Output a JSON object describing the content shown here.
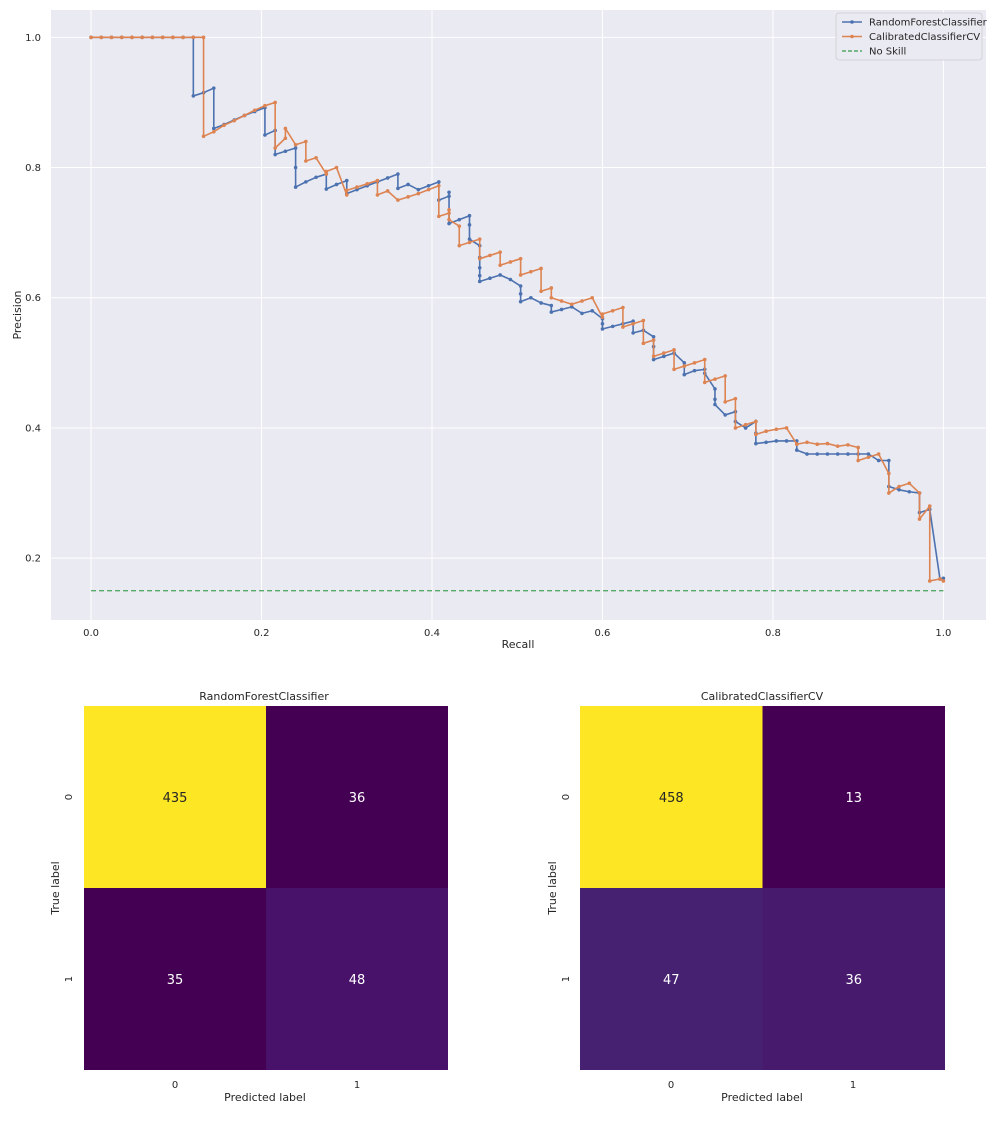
{
  "chart_data": [
    {
      "type": "line",
      "xlabel": "Recall",
      "ylabel": "Precision",
      "xlim": [
        -0.047,
        1.05
      ],
      "ylim": [
        0.105,
        1.042
      ],
      "xticks": [
        0.0,
        0.2,
        0.4,
        0.6,
        0.8,
        1.0
      ],
      "xtick_labels": [
        "0.0",
        "0.2",
        "0.4",
        "0.6",
        "0.8",
        "1.0"
      ],
      "yticks": [
        0.2,
        0.4,
        0.6,
        0.8,
        1.0
      ],
      "ytick_labels": [
        "0.2",
        "0.4",
        "0.6",
        "0.8",
        "1.0"
      ],
      "grid": true,
      "legend_position": "top-right",
      "series": [
        {
          "name": "RandomForestClassifier",
          "color": "#4c72b0",
          "marker": "dot",
          "x": [
            0.0,
            0.012,
            0.024,
            0.036,
            0.048,
            0.06,
            0.072,
            0.084,
            0.096,
            0.108,
            0.12,
            0.12,
            0.132,
            0.144,
            0.144,
            0.156,
            0.168,
            0.18,
            0.192,
            0.204,
            0.204,
            0.216,
            0.216,
            0.228,
            0.24,
            0.24,
            0.24,
            0.252,
            0.264,
            0.276,
            0.276,
            0.288,
            0.3,
            0.3,
            0.312,
            0.324,
            0.336,
            0.348,
            0.36,
            0.36,
            0.372,
            0.384,
            0.396,
            0.408,
            0.408,
            0.42,
            0.42,
            0.42,
            0.432,
            0.444,
            0.444,
            0.444,
            0.456,
            0.456,
            0.456,
            0.456,
            0.456,
            0.468,
            0.48,
            0.492,
            0.504,
            0.504,
            0.504,
            0.516,
            0.528,
            0.54,
            0.54,
            0.552,
            0.564,
            0.576,
            0.588,
            0.6,
            0.6,
            0.6,
            0.612,
            0.624,
            0.636,
            0.636,
            0.648,
            0.66,
            0.66,
            0.66,
            0.672,
            0.684,
            0.696,
            0.696,
            0.708,
            0.72,
            0.72,
            0.732,
            0.732,
            0.732,
            0.744,
            0.756,
            0.756,
            0.768,
            0.78,
            0.78,
            0.78,
            0.792,
            0.804,
            0.816,
            0.828,
            0.828,
            0.84,
            0.852,
            0.864,
            0.876,
            0.888,
            0.9,
            0.912,
            0.924,
            0.936,
            0.936,
            0.948,
            0.96,
            0.972,
            0.972,
            0.984,
            0.996,
            1.0
          ],
          "y": [
            1.0,
            1.0,
            1.0,
            1.0,
            1.0,
            1.0,
            1.0,
            1.0,
            1.0,
            1.0,
            1.0,
            0.91,
            0.915,
            0.922,
            0.86,
            0.866,
            0.873,
            0.88,
            0.886,
            0.892,
            0.85,
            0.857,
            0.82,
            0.825,
            0.83,
            0.8,
            0.77,
            0.778,
            0.785,
            0.79,
            0.767,
            0.774,
            0.78,
            0.76,
            0.766,
            0.772,
            0.778,
            0.784,
            0.79,
            0.768,
            0.774,
            0.766,
            0.772,
            0.778,
            0.75,
            0.756,
            0.762,
            0.714,
            0.72,
            0.726,
            0.712,
            0.69,
            0.68,
            0.662,
            0.646,
            0.634,
            0.625,
            0.63,
            0.635,
            0.628,
            0.618,
            0.606,
            0.594,
            0.6,
            0.592,
            0.588,
            0.578,
            0.582,
            0.586,
            0.576,
            0.58,
            0.568,
            0.56,
            0.552,
            0.556,
            0.56,
            0.564,
            0.546,
            0.55,
            0.54,
            0.525,
            0.505,
            0.51,
            0.515,
            0.5,
            0.482,
            0.488,
            0.49,
            0.484,
            0.46,
            0.444,
            0.436,
            0.42,
            0.425,
            0.41,
            0.4,
            0.41,
            0.392,
            0.376,
            0.378,
            0.38,
            0.38,
            0.38,
            0.366,
            0.36,
            0.36,
            0.36,
            0.36,
            0.36,
            0.36,
            0.36,
            0.35,
            0.35,
            0.31,
            0.305,
            0.302,
            0.3,
            0.27,
            0.275,
            0.168,
            0.169
          ]
        },
        {
          "name": "CalibratedClassifierCV",
          "color": "#dd8452",
          "marker": "dot",
          "x": [
            0.0,
            0.012,
            0.024,
            0.036,
            0.048,
            0.06,
            0.072,
            0.084,
            0.096,
            0.108,
            0.12,
            0.132,
            0.132,
            0.144,
            0.156,
            0.168,
            0.18,
            0.192,
            0.204,
            0.216,
            0.216,
            0.228,
            0.228,
            0.24,
            0.252,
            0.252,
            0.264,
            0.276,
            0.276,
            0.288,
            0.3,
            0.3,
            0.312,
            0.324,
            0.336,
            0.336,
            0.348,
            0.36,
            0.372,
            0.384,
            0.396,
            0.408,
            0.408,
            0.42,
            0.42,
            0.42,
            0.432,
            0.432,
            0.444,
            0.456,
            0.456,
            0.468,
            0.48,
            0.48,
            0.492,
            0.504,
            0.504,
            0.516,
            0.528,
            0.528,
            0.54,
            0.54,
            0.552,
            0.564,
            0.576,
            0.588,
            0.6,
            0.6,
            0.612,
            0.624,
            0.624,
            0.636,
            0.648,
            0.648,
            0.66,
            0.66,
            0.672,
            0.684,
            0.684,
            0.696,
            0.708,
            0.72,
            0.72,
            0.732,
            0.744,
            0.744,
            0.756,
            0.756,
            0.768,
            0.78,
            0.78,
            0.792,
            0.804,
            0.816,
            0.828,
            0.84,
            0.852,
            0.864,
            0.876,
            0.888,
            0.9,
            0.9,
            0.912,
            0.924,
            0.936,
            0.936,
            0.948,
            0.96,
            0.972,
            0.972,
            0.984,
            0.984,
            0.996,
            1.0
          ],
          "y": [
            1.0,
            1.0,
            1.0,
            1.0,
            1.0,
            1.0,
            1.0,
            1.0,
            1.0,
            1.0,
            1.0,
            1.0,
            0.848,
            0.855,
            0.865,
            0.872,
            0.88,
            0.888,
            0.895,
            0.9,
            0.83,
            0.845,
            0.86,
            0.835,
            0.84,
            0.81,
            0.815,
            0.79,
            0.794,
            0.8,
            0.758,
            0.765,
            0.77,
            0.775,
            0.78,
            0.758,
            0.764,
            0.75,
            0.755,
            0.76,
            0.766,
            0.772,
            0.725,
            0.73,
            0.735,
            0.72,
            0.71,
            0.68,
            0.685,
            0.69,
            0.66,
            0.665,
            0.67,
            0.65,
            0.655,
            0.66,
            0.635,
            0.64,
            0.645,
            0.61,
            0.615,
            0.6,
            0.595,
            0.59,
            0.595,
            0.6,
            0.57,
            0.575,
            0.58,
            0.585,
            0.555,
            0.56,
            0.565,
            0.53,
            0.535,
            0.51,
            0.515,
            0.52,
            0.49,
            0.495,
            0.5,
            0.505,
            0.47,
            0.475,
            0.48,
            0.44,
            0.445,
            0.4,
            0.405,
            0.41,
            0.39,
            0.395,
            0.398,
            0.4,
            0.375,
            0.378,
            0.375,
            0.376,
            0.372,
            0.374,
            0.37,
            0.35,
            0.355,
            0.36,
            0.33,
            0.3,
            0.31,
            0.315,
            0.3,
            0.26,
            0.28,
            0.165,
            0.168,
            0.165
          ]
        },
        {
          "name": "No Skill",
          "color": "#55a868",
          "dashed": true,
          "x": [
            0.0,
            1.0
          ],
          "y": [
            0.15,
            0.15
          ]
        }
      ]
    },
    {
      "type": "heatmap",
      "title": "RandomForestClassifier",
      "xlabel": "Predicted label",
      "ylabel": "True label",
      "x_categories": [
        "0",
        "1"
      ],
      "y_categories": [
        "0",
        "1"
      ],
      "values": [
        [
          435,
          36
        ],
        [
          35,
          48
        ]
      ],
      "cell_colors": [
        [
          "#fde725",
          "#440154"
        ],
        [
          "#440154",
          "#48126a"
        ]
      ],
      "text_colors": [
        [
          "#262626",
          "#ffffff"
        ],
        [
          "#ffffff",
          "#ffffff"
        ]
      ]
    },
    {
      "type": "heatmap",
      "title": "CalibratedClassifierCV",
      "xlabel": "Predicted label",
      "ylabel": "True label",
      "x_categories": [
        "0",
        "1"
      ],
      "y_categories": [
        "0",
        "1"
      ],
      "values": [
        [
          458,
          13
        ],
        [
          47,
          36
        ]
      ],
      "cell_colors": [
        [
          "#fde725",
          "#440154"
        ],
        [
          "#472171",
          "#471a6e"
        ]
      ],
      "text_colors": [
        [
          "#262626",
          "#ffffff"
        ],
        [
          "#ffffff",
          "#ffffff"
        ]
      ]
    }
  ]
}
